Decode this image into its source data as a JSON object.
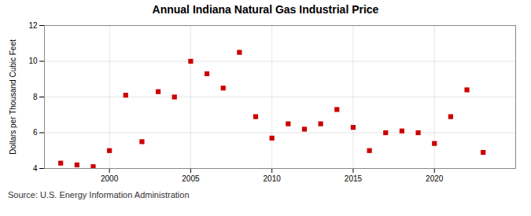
{
  "chart_data": {
    "type": "scatter",
    "title": "Annual Indiana Natural Gas Industrial Price",
    "ylabel": "Dollars per Thousand Cubic Feet",
    "source": "Source: U.S. Energy Information Administration",
    "x": [
      1997,
      1998,
      1999,
      2000,
      2001,
      2002,
      2003,
      2004,
      2005,
      2006,
      2007,
      2008,
      2009,
      2010,
      2011,
      2012,
      2013,
      2014,
      2015,
      2016,
      2017,
      2018,
      2019,
      2020,
      2021,
      2022,
      2023
    ],
    "values": [
      4.3,
      4.2,
      4.1,
      5.0,
      8.1,
      5.5,
      8.3,
      8.0,
      10.0,
      9.3,
      8.5,
      10.5,
      6.9,
      5.7,
      6.5,
      6.2,
      6.5,
      7.3,
      6.3,
      5.0,
      6.0,
      6.1,
      6.0,
      5.4,
      6.9,
      8.4,
      4.9
    ],
    "color": "#cc0000",
    "marker": "square",
    "xlim": [
      1996,
      2025
    ],
    "xticks": [
      2000,
      2005,
      2010,
      2015,
      2020
    ],
    "ylim": [
      4,
      12
    ],
    "yticks": [
      4,
      6,
      8,
      10,
      12
    ],
    "grid": true
  }
}
